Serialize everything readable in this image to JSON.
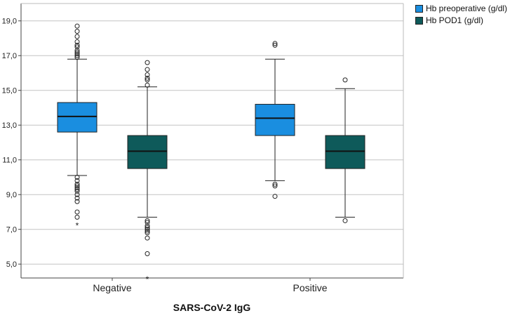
{
  "chart_data": {
    "type": "boxplot",
    "title": "",
    "xlabel": "SARS-CoV-2 IgG",
    "ylabel": "",
    "ylim": [
      4.2,
      20.0
    ],
    "yticks": [
      {
        "value": 5,
        "label": "5,0"
      },
      {
        "value": 7,
        "label": "7,0"
      },
      {
        "value": 9,
        "label": "9,0"
      },
      {
        "value": 11,
        "label": "11,0"
      },
      {
        "value": 13,
        "label": "13,0"
      },
      {
        "value": 15,
        "label": "15,0"
      },
      {
        "value": 17,
        "label": "17,0"
      },
      {
        "value": 19,
        "label": "19,0"
      }
    ],
    "grid": true,
    "legend_position": "top-right",
    "categories": [
      "Negative",
      "Positive"
    ],
    "series": [
      {
        "name": "Hb preoperative (g/dl)",
        "color": "#1a8ee0",
        "boxes": [
          {
            "q1": 12.6,
            "median": 13.5,
            "q3": 14.3,
            "whisker_low": 10.1,
            "whisker_high": 16.8,
            "outliers": [
              16.9,
              17.0,
              17.1,
              17.2,
              17.3,
              17.5,
              17.6,
              17.8,
              18.1,
              18.4,
              18.7,
              10.0,
              9.8,
              9.6,
              9.5,
              9.4,
              9.3,
              9.2,
              9.0,
              8.8,
              8.6,
              8.0,
              7.7
            ],
            "extremes": [
              7.3
            ]
          },
          {
            "q1": 12.4,
            "median": 13.4,
            "q3": 14.2,
            "whisker_low": 9.8,
            "whisker_high": 16.8,
            "outliers": [
              17.6,
              17.7,
              9.6,
              9.5,
              8.9
            ],
            "extremes": []
          }
        ]
      },
      {
        "name": "Hb POD1 (g/dl)",
        "color": "#0e5a5a",
        "boxes": [
          {
            "q1": 10.5,
            "median": 11.5,
            "q3": 12.4,
            "whisker_low": 7.7,
            "whisker_high": 15.2,
            "outliers": [
              15.3,
              15.6,
              15.7,
              15.9,
              16.2,
              16.6,
              7.5,
              7.4,
              7.2,
              7.1,
              7.0,
              6.9,
              6.8,
              6.5,
              5.6
            ],
            "extremes": [
              4.2
            ]
          },
          {
            "q1": 10.5,
            "median": 11.5,
            "q3": 12.4,
            "whisker_low": 7.7,
            "whisker_high": 15.1,
            "outliers": [
              15.6,
              7.5
            ],
            "extremes": []
          }
        ]
      }
    ]
  }
}
